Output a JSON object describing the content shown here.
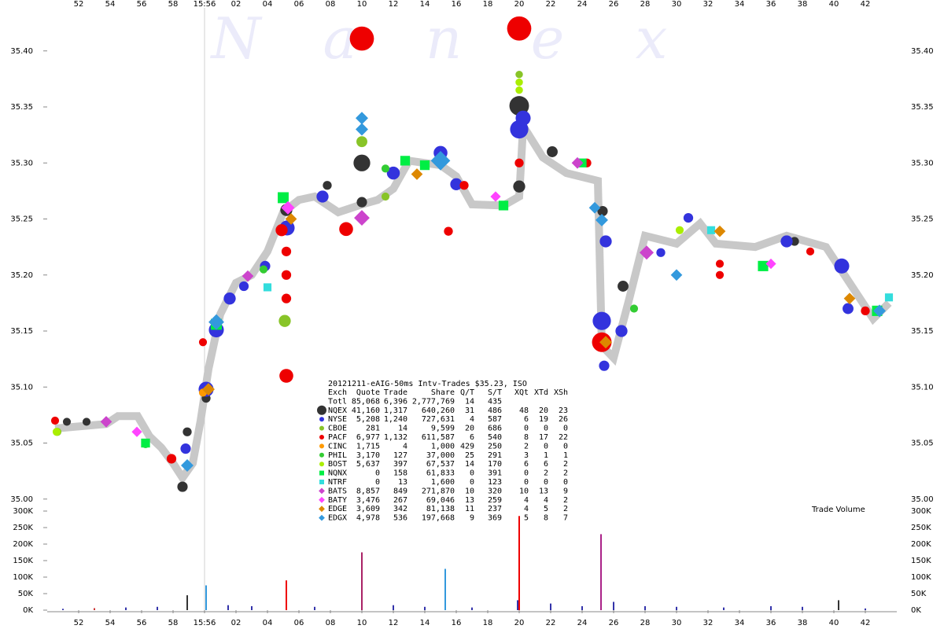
{
  "chart_data": {
    "type": "scatter",
    "watermark": [
      "N",
      "a",
      "n",
      "e",
      "x"
    ],
    "title": "20121211-eAIG-50ms Intv-Trades $35.23, ISO",
    "volume_label": "Trade Volume",
    "xlim": [
      -10,
      44
    ],
    "xticks": [
      {
        "value": -8,
        "label": "52"
      },
      {
        "value": -6,
        "label": "54"
      },
      {
        "value": -4,
        "label": "56"
      },
      {
        "value": -2,
        "label": "58"
      },
      {
        "value": 0,
        "label": "15:56"
      },
      {
        "value": 2,
        "label": "02"
      },
      {
        "value": 4,
        "label": "04"
      },
      {
        "value": 6,
        "label": "06"
      },
      {
        "value": 8,
        "label": "08"
      },
      10,
      12,
      14,
      16,
      18,
      20,
      22,
      24,
      26,
      28,
      30,
      32,
      34,
      36,
      38,
      40,
      42
    ],
    "ylim": [
      34.99,
      35.44
    ],
    "yticks": [
      {
        "value": 35.0,
        "label": "35.00"
      },
      {
        "value": 35.05,
        "label": "35.05"
      },
      {
        "value": 35.1,
        "label": "35.10"
      },
      {
        "value": 35.15,
        "label": "35.15"
      },
      {
        "value": 35.2,
        "label": "35.20"
      },
      {
        "value": 35.25,
        "label": "35.25"
      },
      {
        "value": 35.3,
        "label": "35.30"
      },
      {
        "value": 35.35,
        "label": "35.35"
      },
      {
        "value": 35.4,
        "label": "35.40"
      }
    ],
    "vol_ylim": [
      0,
      300000
    ],
    "vol_yticks": [
      {
        "value": 0,
        "label": "0K"
      },
      {
        "value": 50000,
        "label": "50K"
      },
      {
        "value": 100000,
        "label": "100K"
      },
      {
        "value": 150000,
        "label": "150K"
      },
      {
        "value": 200000,
        "label": "200K"
      },
      {
        "value": 250000,
        "label": "250K"
      },
      {
        "value": 300000,
        "label": "300K"
      }
    ],
    "nbbo": {
      "color": "#c8c8c8",
      "x": [
        -9.5,
        -6.25,
        -5.5,
        -4.25,
        -3.5,
        -2.75,
        -2,
        -1.4,
        -0.75,
        -0.25,
        0.25,
        1,
        2,
        3,
        4,
        5,
        6,
        7,
        8.5,
        10,
        11,
        12,
        13,
        15,
        16,
        17,
        19,
        20,
        20.25,
        21.5,
        23,
        25,
        25.25,
        26,
        27,
        28,
        30,
        31.5,
        32.5,
        35,
        37,
        39.5,
        41,
        42.5,
        43.5
      ],
      "y": [
        35.063,
        35.067,
        35.074,
        35.074,
        35.056,
        35.046,
        35.032,
        35.019,
        35.032,
        35.07,
        35.116,
        35.165,
        35.193,
        35.2,
        35.221,
        35.256,
        35.267,
        35.27,
        35.256,
        35.263,
        35.267,
        35.277,
        35.302,
        35.298,
        35.288,
        35.263,
        35.262,
        35.27,
        35.333,
        35.305,
        35.291,
        35.284,
        35.137,
        35.126,
        35.179,
        35.235,
        35.228,
        35.246,
        35.228,
        35.225,
        35.235,
        35.225,
        35.193,
        35.161,
        35.175
      ]
    },
    "table_header": [
      "Exch",
      "Quote",
      "Trade",
      "Share",
      "Q/T",
      "S/T",
      "XQt",
      "XTd",
      "XSh"
    ],
    "total": {
      "name": "Totl",
      "stats": [
        "85,068",
        "6,396",
        "2,777,769",
        "14",
        "435"
      ]
    },
    "series": [
      {
        "name": "NQEX",
        "color": "#333333",
        "marker": "circle",
        "stats": [
          "41,160",
          "1,317",
          "640,260",
          "31",
          "486",
          "48",
          "20",
          "23"
        ],
        "x": [
          -8.75,
          -7.5,
          -1.4,
          -1.1,
          0.1,
          5.2,
          7.8,
          10,
          10,
          20,
          20,
          22.1,
          25.3,
          26.6,
          37.5
        ],
        "y": [
          35.069,
          35.069,
          35.011,
          35.06,
          35.09,
          35.258,
          35.28,
          35.3,
          35.265,
          35.351,
          35.279,
          35.31,
          35.257,
          35.19,
          35.23
        ],
        "sizes": [
          200,
          200,
          500,
          300,
          300,
          800,
          300,
          2000,
          500,
          3000,
          800,
          600,
          500,
          600,
          300
        ]
      },
      {
        "name": "NYSE",
        "color": "#3333dd",
        "marker": "circle",
        "stats": [
          "5,208",
          "1,240",
          "727,631",
          "4",
          "587",
          "6",
          "19",
          "26"
        ],
        "x": [
          0.1,
          0.75,
          1.6,
          3.85,
          5.25,
          7.5,
          9,
          12,
          15,
          16,
          20,
          20.25,
          25.25,
          25.5,
          26.5,
          25.4,
          30.75,
          37,
          40.5,
          40.9,
          29,
          -1.2,
          2.5
        ],
        "y": [
          35.098,
          35.151,
          35.179,
          35.208,
          35.242,
          35.27,
          35.241,
          35.291,
          35.309,
          35.281,
          35.33,
          35.34,
          35.159,
          35.23,
          35.15,
          35.119,
          35.251,
          35.23,
          35.208,
          35.17,
          35.22,
          35.045,
          35.19
        ],
        "sizes": [
          1500,
          1500,
          800,
          500,
          1500,
          800,
          1000,
          1000,
          1200,
          800,
          2500,
          1500,
          2500,
          800,
          800,
          500,
          400,
          800,
          1500,
          600,
          300,
          500,
          400
        ]
      },
      {
        "name": "CBOE",
        "color": "#88c428",
        "marker": "circle",
        "stats": [
          "281",
          "14",
          "9,599",
          "20",
          "686",
          "0",
          "0",
          "0"
        ],
        "x": [
          5.1,
          10,
          20,
          -9.35,
          11.5
        ],
        "y": [
          35.159,
          35.319,
          35.379,
          35.06,
          35.27
        ],
        "sizes": [
          800,
          600,
          150,
          200,
          200
        ]
      },
      {
        "name": "PACF",
        "color": "#ee0000",
        "marker": "circle",
        "stats": [
          "6,977",
          "1,132",
          "611,587",
          "6",
          "540",
          "8",
          "17",
          "22"
        ],
        "x": [
          10,
          20,
          5.2,
          25.25,
          9,
          5.2,
          5.2,
          5.2,
          -9.5,
          -2.1,
          15.5,
          20,
          32.75,
          32.75,
          38.5,
          42,
          16.5,
          -0.1,
          4.9,
          24.3
        ],
        "y": [
          35.411,
          35.42,
          35.11,
          35.14,
          35.241,
          35.2,
          35.221,
          35.179,
          35.07,
          35.036,
          35.239,
          35.3,
          35.21,
          35.2,
          35.221,
          35.168,
          35.28,
          35.14,
          35.24,
          35.3
        ],
        "sizes": [
          5000,
          5000,
          1200,
          3000,
          1200,
          400,
          400,
          400,
          200,
          400,
          300,
          300,
          200,
          200,
          200,
          300,
          300,
          200,
          800,
          300
        ]
      },
      {
        "name": "CINC",
        "color": "#ff9900",
        "marker": "circle",
        "stats": [
          "1,715",
          "4",
          "1,000",
          "429",
          "250",
          "2",
          "0",
          "0"
        ],
        "x": [
          -0.1,
          25.5
        ],
        "y": [
          35.095,
          35.14
        ],
        "sizes": [
          200,
          200
        ]
      },
      {
        "name": "PHIL",
        "color": "#33cc33",
        "marker": "circle",
        "stats": [
          "3,170",
          "127",
          "37,000",
          "25",
          "291",
          "3",
          "1",
          "1"
        ],
        "x": [
          -3.75,
          0.75,
          3.75,
          11.5,
          27.3
        ],
        "y": [
          35.049,
          35.155,
          35.205,
          35.295,
          35.17
        ],
        "sizes": [
          200,
          300,
          200,
          200,
          200
        ]
      },
      {
        "name": "BOST",
        "color": "#aaee00",
        "marker": "circle",
        "stats": [
          "5,637",
          "397",
          "67,537",
          "14",
          "170",
          "6",
          "6",
          "2"
        ],
        "x": [
          20,
          20,
          -9.4,
          30.2
        ],
        "y": [
          35.372,
          35.365,
          35.06,
          35.24
        ],
        "sizes": [
          150,
          150,
          200,
          200
        ]
      },
      {
        "name": "NQNX",
        "color": "#00ee44",
        "marker": "square",
        "stats": [
          "0",
          "158",
          "61,833",
          "0",
          "391",
          "0",
          "2",
          "2"
        ],
        "x": [
          5,
          12.75,
          14,
          19,
          24,
          35.5,
          42.75,
          0.75,
          -3.75
        ],
        "y": [
          35.269,
          35.302,
          35.298,
          35.262,
          35.3,
          35.208,
          35.168,
          35.156,
          35.05
        ],
        "sizes": [
          600,
          400,
          400,
          400,
          300,
          500,
          500,
          600,
          300
        ]
      },
      {
        "name": "NTRF",
        "color": "#33dddd",
        "marker": "square",
        "stats": [
          "0",
          "13",
          "1,600",
          "0",
          "123",
          "0",
          "0",
          "0"
        ],
        "x": [
          4,
          43.5,
          32.2
        ],
        "y": [
          35.189,
          35.18,
          35.24
        ],
        "sizes": [
          200,
          200,
          200
        ]
      },
      {
        "name": "BATS",
        "color": "#cc44cc",
        "marker": "diamond",
        "stats": [
          "8,857",
          "849",
          "271,870",
          "10",
          "320",
          "10",
          "13",
          "9"
        ],
        "x": [
          10,
          28.1,
          2.75,
          -6.25,
          23.7
        ],
        "y": [
          35.251,
          35.22,
          35.199,
          35.069,
          35.3
        ],
        "sizes": [
          800,
          600,
          300,
          300,
          300
        ]
      },
      {
        "name": "BATY",
        "color": "#ff44ff",
        "marker": "diamond",
        "stats": [
          "3,476",
          "267",
          "69,046",
          "13",
          "259",
          "4",
          "4",
          "2"
        ],
        "x": [
          5.3,
          36,
          -4.3,
          18.5
        ],
        "y": [
          35.26,
          35.21,
          35.06,
          35.27
        ],
        "sizes": [
          500,
          200,
          200,
          200
        ]
      },
      {
        "name": "EDGE",
        "color": "#dd8800",
        "marker": "diamond",
        "stats": [
          "3,609",
          "342",
          "81,138",
          "11",
          "237",
          "4",
          "5",
          "2"
        ],
        "x": [
          0.25,
          32.75,
          41,
          25.5,
          5.5,
          13.5
        ],
        "y": [
          35.098,
          35.239,
          35.179,
          35.14,
          35.25,
          35.29
        ],
        "sizes": [
          400,
          300,
          300,
          400,
          300,
          300
        ]
      },
      {
        "name": "EDGX",
        "color": "#3399dd",
        "marker": "diamond",
        "stats": [
          "4,978",
          "536",
          "197,668",
          "9",
          "369",
          "5",
          "8",
          "7"
        ],
        "x": [
          10,
          15,
          0.75,
          25.25,
          30,
          42.9,
          -1.1,
          10,
          24.8
        ],
        "y": [
          35.34,
          35.302,
          35.158,
          35.249,
          35.2,
          35.168,
          35.03,
          35.33,
          35.26
        ],
        "sizes": [
          400,
          1500,
          800,
          400,
          300,
          400,
          400,
          400,
          300
        ]
      }
    ],
    "volume": {
      "x": [
        -9,
        -7,
        -5,
        -3,
        -1.1,
        0.1,
        1.5,
        3,
        5.2,
        7,
        10,
        12,
        14,
        15.3,
        17,
        19.9,
        20,
        22,
        24,
        25.2,
        26,
        28,
        30,
        33,
        36,
        38,
        40.3,
        42
      ],
      "values": [
        4000,
        6000,
        8000,
        10000,
        45000,
        75000,
        15000,
        12000,
        90000,
        10000,
        175000,
        15000,
        10000,
        125000,
        8000,
        30000,
        285000,
        20000,
        12000,
        230000,
        25000,
        12000,
        10000,
        8000,
        12000,
        10000,
        30000,
        5000
      ],
      "colors": [
        "#3333aa",
        "#cc3333",
        "#3333aa",
        "#3333aa",
        "#333333",
        "#3399dd",
        "#3333aa",
        "#3333aa",
        "#ee0000",
        "#3333aa",
        "#aa2266",
        "#3333aa",
        "#3333aa",
        "#3399dd",
        "#3333aa",
        "#3333aa",
        "#ee0000",
        "#3333aa",
        "#3333aa",
        "#aa2288",
        "#3333aa",
        "#3333aa",
        "#3333aa",
        "#3333aa",
        "#3333aa",
        "#3333aa",
        "#333333",
        "#3333aa"
      ]
    }
  }
}
